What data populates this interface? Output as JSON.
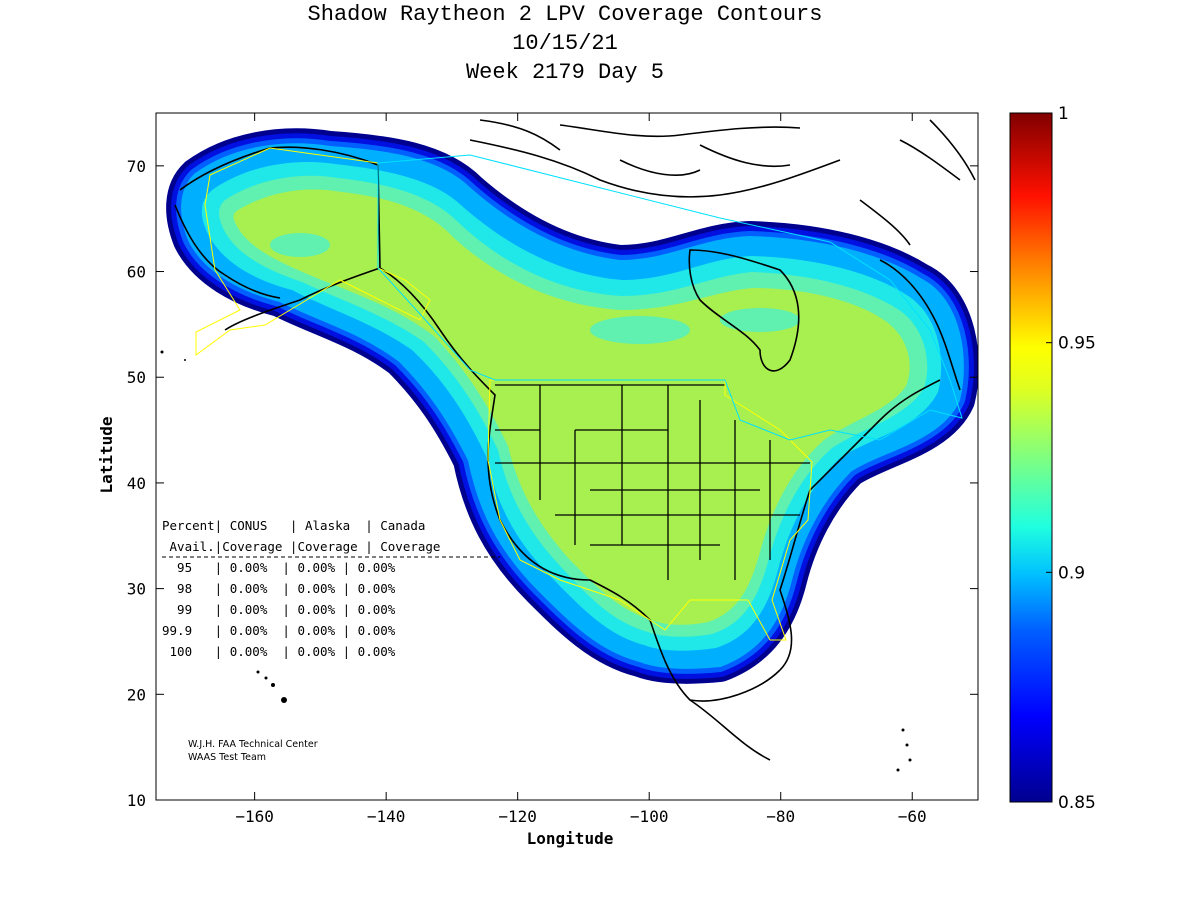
{
  "title": {
    "line1": "Shadow Raytheon 2 LPV Coverage Contours",
    "line2": "10/15/21",
    "line3": "Week 2179 Day 5"
  },
  "map": {
    "xlabel": "Longitude",
    "ylabel": "Latitude",
    "xlim": [
      -175,
      -50
    ],
    "ylim": [
      10,
      75
    ],
    "xticks": [
      -160,
      -140,
      -120,
      -100,
      -80,
      -60
    ],
    "yticks": [
      10,
      20,
      30,
      40,
      50,
      60,
      70
    ],
    "xtick_labels": [
      "−160",
      "−140",
      "−120",
      "−100",
      "−80",
      "−60"
    ],
    "ytick_labels": [
      "10",
      "20",
      "30",
      "40",
      "50",
      "60",
      "70"
    ]
  },
  "colorbar": {
    "range": [
      0.85,
      1
    ],
    "ticks": [
      0.85,
      0.9,
      0.95,
      1
    ],
    "tick_labels": [
      "0.85",
      "0.9",
      "0.95",
      "1"
    ],
    "colormap": "jet",
    "colors": [
      "#00008f",
      "#0000ff",
      "#0080ff",
      "#00ffff",
      "#80ff80",
      "#ffff00",
      "#ff8000",
      "#ff0000",
      "#800000"
    ]
  },
  "coverage_colors": {
    "outer": "#00008f",
    "mid1": "#0010e0",
    "mid2": "#0060ff",
    "mid3": "#00b0ff",
    "mid4": "#20e8e8",
    "mid5": "#60f0b0",
    "core": "#a8f050"
  },
  "table": {
    "header1": "Percent| CONUS   | Alaska  | Canada",
    "header2": " Avail.|Coverage |Coverage | Coverage",
    "rows": [
      "  95   | 0.00%  | 0.00% | 0.00%",
      "  98   | 0.00%  | 0.00% | 0.00%",
      "  99   | 0.00%  | 0.00% | 0.00%",
      "99.9   | 0.00%  | 0.00% | 0.00%",
      " 100   | 0.00%  | 0.00% | 0.00%"
    ]
  },
  "credit": {
    "line1": "W.J.H. FAA Technical Center",
    "line2": "WAAS Test Team"
  }
}
